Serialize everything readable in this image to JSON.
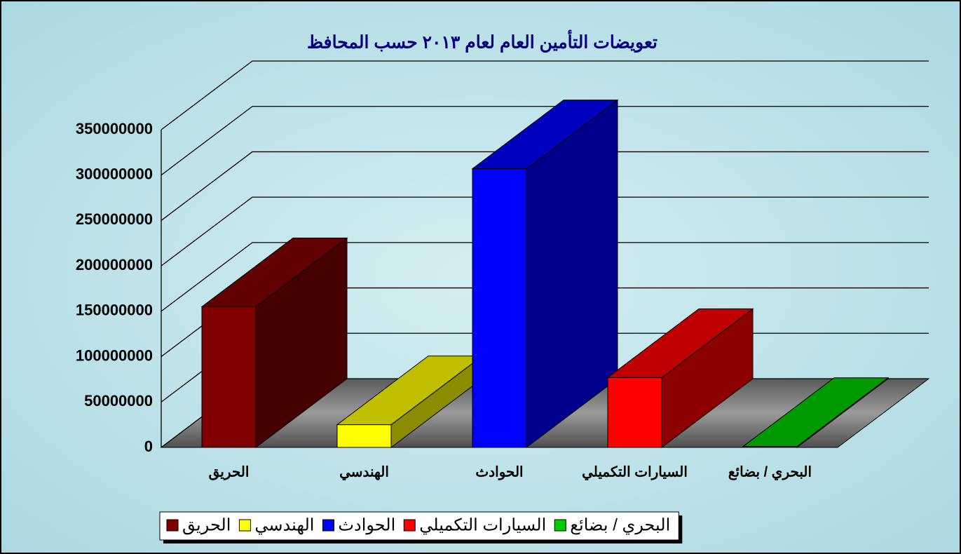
{
  "chart_data": {
    "type": "bar3d",
    "title": "تعويضات التأمين العام لعام ٢٠١٣ حسب المحافظ",
    "categories": [
      "الحريق",
      "الهندسي",
      "الحوادث",
      "السيارات التكميلي",
      "البحري / بضائع"
    ],
    "values": [
      155000000,
      25000000,
      307000000,
      77000000,
      1000000
    ],
    "colors": [
      "#800000",
      "#ffff00",
      "#0000ff",
      "#ff0000",
      "#00cc00"
    ],
    "ylim": [
      0,
      350000000
    ],
    "yticks": [
      0,
      50000000,
      100000000,
      150000000,
      200000000,
      250000000,
      300000000,
      350000000
    ],
    "grid": true,
    "legend": "bottom"
  }
}
